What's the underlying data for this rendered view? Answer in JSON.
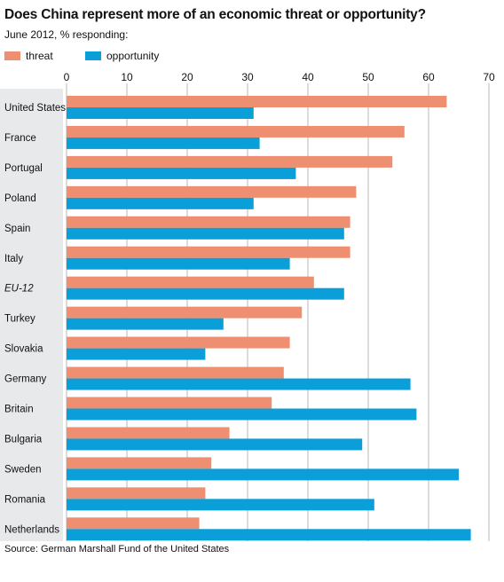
{
  "title": "Does China represent more of an economic threat or opportunity?",
  "subtitle": "June 2012, % responding:",
  "source": "Source: German Marshall Fund of the United States",
  "colors": {
    "threat": "#ef8f72",
    "opportunity": "#0a9fd8",
    "grid": "#b8b8b8",
    "label_bg": "#e8e9ea"
  },
  "chart_data": {
    "type": "bar",
    "orientation": "horizontal",
    "categories": [
      "United States",
      "France",
      "Portugal",
      "Poland",
      "Spain",
      "Italy",
      "EU-12",
      "Turkey",
      "Slovakia",
      "Germany",
      "Britain",
      "Bulgaria",
      "Sweden",
      "Romania",
      "Netherlands"
    ],
    "italic_categories": [
      "EU-12"
    ],
    "series": [
      {
        "name": "threat",
        "values": [
          63,
          56,
          54,
          48,
          47,
          47,
          41,
          39,
          37,
          36,
          34,
          27,
          24,
          23,
          22
        ]
      },
      {
        "name": "opportunity",
        "values": [
          31,
          32,
          38,
          31,
          46,
          37,
          46,
          26,
          23,
          57,
          58,
          49,
          65,
          51,
          67
        ]
      }
    ],
    "xlim": [
      0,
      70
    ],
    "xticks": [
      0,
      10,
      20,
      30,
      40,
      50,
      60,
      70
    ],
    "grid": true,
    "legend_position": "top-left"
  }
}
